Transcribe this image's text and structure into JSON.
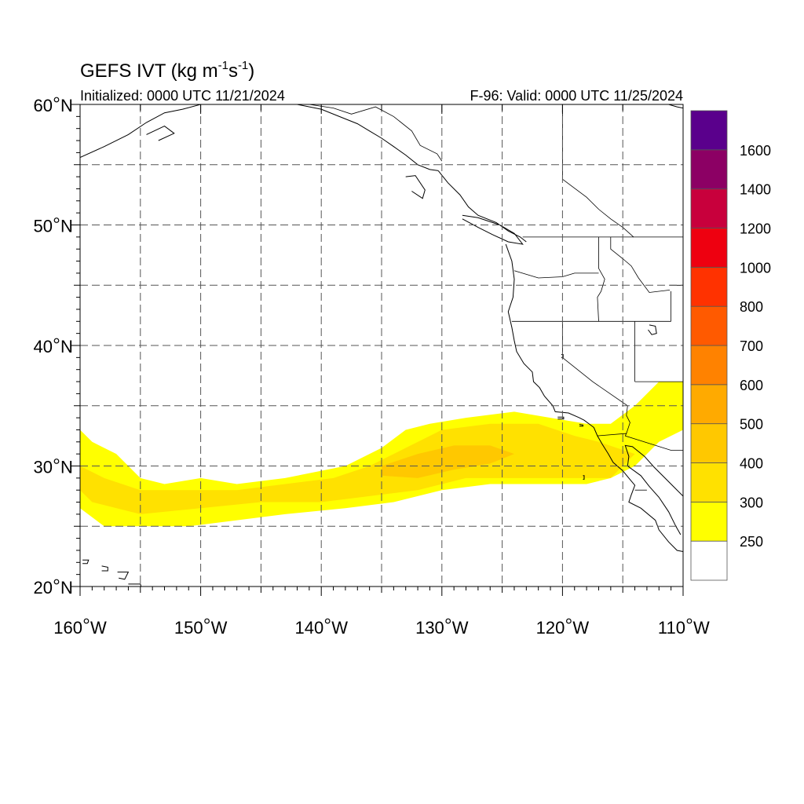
{
  "title": {
    "main": "GEFS IVT (kg m",
    "exp1": "-1",
    "mid": "s",
    "exp2": "-1",
    "close": ")"
  },
  "initialized": "Initialized: 0000 UTC 11/21/2024",
  "valid": "F-96: Valid: 0000 UTC 11/25/2024",
  "y_axis": {
    "labels": [
      {
        "value": 60,
        "num": "60",
        "unit": "N"
      },
      {
        "value": 50,
        "num": "50",
        "unit": "N"
      },
      {
        "value": 40,
        "num": "40",
        "unit": "N"
      },
      {
        "value": 30,
        "num": "30",
        "unit": "N"
      },
      {
        "value": 20,
        "num": "20",
        "unit": "N"
      }
    ]
  },
  "x_axis": {
    "labels": [
      {
        "value": -160,
        "num": "160",
        "unit": "W"
      },
      {
        "value": -150,
        "num": "150",
        "unit": "W"
      },
      {
        "value": -140,
        "num": "140",
        "unit": "W"
      },
      {
        "value": -130,
        "num": "130",
        "unit": "W"
      },
      {
        "value": -120,
        "num": "120",
        "unit": "W"
      },
      {
        "value": -110,
        "num": "110",
        "unit": "W"
      }
    ]
  },
  "map_extent": {
    "lon": [
      -160,
      -110
    ],
    "lat": [
      20,
      60
    ]
  },
  "colorbar": {
    "colors": [
      "#ffffff",
      "#ffff00",
      "#ffe100",
      "#ffc800",
      "#ffaa00",
      "#ff8200",
      "#ff5a00",
      "#ff3200",
      "#ee0010",
      "#c8003c",
      "#8c0064",
      "#5a008c"
    ],
    "labels": [
      "250",
      "300",
      "400",
      "500",
      "600",
      "700",
      "800",
      "1000",
      "1200",
      "1400",
      "1600"
    ]
  },
  "ivt_bands": [
    {
      "level": 250,
      "color": "#ffff00",
      "polygon": [
        [
          -160,
          33
        ],
        [
          -159,
          32
        ],
        [
          -157,
          31
        ],
        [
          -155,
          29
        ],
        [
          -153,
          28.5
        ],
        [
          -150,
          29
        ],
        [
          -147,
          28.5
        ],
        [
          -143,
          29
        ],
        [
          -138,
          30
        ],
        [
          -135,
          31.5
        ],
        [
          -133,
          33
        ],
        [
          -131,
          33.5
        ],
        [
          -128,
          34
        ],
        [
          -124,
          34.5
        ],
        [
          -121,
          34
        ],
        [
          -118,
          33.5
        ],
        [
          -116,
          33.5
        ],
        [
          -114,
          35
        ],
        [
          -112,
          37
        ],
        [
          -110,
          37
        ],
        [
          -110,
          33
        ],
        [
          -112,
          32
        ],
        [
          -114,
          30
        ],
        [
          -116,
          29
        ],
        [
          -118,
          28.5
        ],
        [
          -122,
          28.5
        ],
        [
          -126,
          28.5
        ],
        [
          -130,
          28
        ],
        [
          -134,
          27
        ],
        [
          -138,
          26.5
        ],
        [
          -143,
          26
        ],
        [
          -147,
          25.5
        ],
        [
          -151,
          25
        ],
        [
          -155,
          25
        ],
        [
          -158,
          25
        ],
        [
          -160,
          26.5
        ]
      ]
    },
    {
      "level": 300,
      "color": "#ffe100",
      "polygon": [
        [
          -160,
          30
        ],
        [
          -158,
          29
        ],
        [
          -155,
          28
        ],
        [
          -151,
          28
        ],
        [
          -147,
          28
        ],
        [
          -143,
          28.5
        ],
        [
          -139,
          29
        ],
        [
          -136,
          30
        ],
        [
          -133,
          31.5
        ],
        [
          -130,
          33
        ],
        [
          -126,
          33.5
        ],
        [
          -122,
          33.5
        ],
        [
          -119,
          32.5
        ],
        [
          -117,
          32
        ],
        [
          -114,
          31
        ],
        [
          -116,
          29
        ],
        [
          -119,
          29
        ],
        [
          -124,
          29
        ],
        [
          -128,
          29
        ],
        [
          -132,
          28
        ],
        [
          -136,
          27.5
        ],
        [
          -140,
          27
        ],
        [
          -145,
          27
        ],
        [
          -150,
          26.5
        ],
        [
          -155,
          26
        ],
        [
          -159,
          27
        ],
        [
          -160,
          28
        ]
      ]
    },
    {
      "level": 400,
      "color": "#ffc800",
      "polygon": [
        [
          -135,
          30
        ],
        [
          -132,
          31
        ],
        [
          -129,
          31.7
        ],
        [
          -126,
          31.7
        ],
        [
          -124,
          31
        ],
        [
          -126,
          30.2
        ],
        [
          -129,
          29.7
        ],
        [
          -132,
          29
        ],
        [
          -135,
          29.2
        ]
      ]
    }
  ],
  "coastlines": [
    {
      "name": "alaska",
      "points": [
        [
          -160,
          55.6
        ],
        [
          -158,
          56.5
        ],
        [
          -156,
          57.5
        ],
        [
          -154.5,
          58.5
        ],
        [
          -153,
          59.3
        ],
        [
          -151.5,
          59.6
        ],
        [
          -150,
          60
        ],
        [
          -148,
          60
        ],
        [
          -146,
          60.3
        ],
        [
          -144,
          60
        ],
        [
          -142,
          60
        ],
        [
          -140,
          59.6
        ],
        [
          -138.5,
          59
        ],
        [
          -137,
          58.4
        ],
        [
          -136,
          57.8
        ],
        [
          -135,
          57.2
        ],
        [
          -134,
          56.5
        ],
        [
          -133,
          55.8
        ],
        [
          -132,
          55
        ],
        [
          -131,
          54.6
        ],
        [
          -130.3,
          54.5
        ]
      ]
    },
    {
      "name": "kodiak",
      "points": [
        [
          -154.5,
          57.5
        ],
        [
          -153,
          58.2
        ],
        [
          -152.2,
          57.6
        ],
        [
          -153.5,
          57
        ]
      ]
    },
    {
      "name": "bc-coast",
      "points": [
        [
          -130.3,
          54.5
        ],
        [
          -129.5,
          53.5
        ],
        [
          -128.5,
          52.5
        ],
        [
          -127.8,
          51.5
        ],
        [
          -127,
          50.8
        ],
        [
          -125.5,
          50.2
        ],
        [
          -124.5,
          49.5
        ],
        [
          -123.5,
          49
        ],
        [
          -123,
          48.6
        ]
      ]
    },
    {
      "name": "haida-gwaii",
      "points": [
        [
          -133,
          54
        ],
        [
          -132.2,
          54.1
        ],
        [
          -131.4,
          52.9
        ],
        [
          -131.6,
          52.2
        ],
        [
          -132.5,
          52.8
        ]
      ]
    },
    {
      "name": "vancouver-island",
      "points": [
        [
          -128.3,
          50.8
        ],
        [
          -127,
          50.6
        ],
        [
          -125.2,
          50
        ],
        [
          -124,
          49.3
        ],
        [
          -123.3,
          48.4
        ],
        [
          -124.5,
          48.6
        ],
        [
          -125.8,
          49.2
        ],
        [
          -127,
          49.8
        ],
        [
          -128.3,
          50.5
        ]
      ]
    },
    {
      "name": "us-west-coast",
      "points": [
        [
          -124.7,
          48.4
        ],
        [
          -124.2,
          47
        ],
        [
          -124,
          45.5
        ],
        [
          -124.1,
          44
        ],
        [
          -124.5,
          42.8
        ],
        [
          -124.2,
          41.5
        ],
        [
          -124,
          40.4
        ],
        [
          -123.8,
          39.5
        ],
        [
          -123.2,
          38.5
        ],
        [
          -122.5,
          37.8
        ],
        [
          -122.4,
          37
        ],
        [
          -121.9,
          36.5
        ],
        [
          -121.5,
          35.8
        ],
        [
          -120.8,
          35
        ],
        [
          -120.6,
          34.5
        ],
        [
          -119.5,
          34.4
        ],
        [
          -118.6,
          34
        ],
        [
          -118.2,
          33.8
        ],
        [
          -117.4,
          33.2
        ],
        [
          -117.1,
          32.5
        ],
        [
          -116.7,
          31.8
        ],
        [
          -116.2,
          31
        ],
        [
          -115.8,
          30.3
        ],
        [
          -115,
          29.6
        ],
        [
          -114.5,
          29
        ],
        [
          -114,
          28.4
        ],
        [
          -114.3,
          27.6
        ],
        [
          -114.5,
          27
        ],
        [
          -113.5,
          26.5
        ],
        [
          -112.3,
          25.5
        ],
        [
          -112,
          24.7
        ],
        [
          -111.2,
          23.7
        ],
        [
          -110.5,
          23
        ],
        [
          -110,
          22.9
        ]
      ]
    },
    {
      "name": "gulf-of-california",
      "points": [
        [
          -110,
          27.5
        ],
        [
          -110.7,
          28.2
        ],
        [
          -111.5,
          29
        ],
        [
          -112.4,
          29.9
        ],
        [
          -113.2,
          30.8
        ],
        [
          -114.2,
          31.6
        ],
        [
          -114.8,
          31.7
        ],
        [
          -114.5,
          30.8
        ],
        [
          -114.6,
          30
        ],
        [
          -113.5,
          29.2
        ],
        [
          -112.8,
          28.3
        ],
        [
          -112,
          27.4
        ],
        [
          -111.2,
          26.2
        ],
        [
          -110.6,
          25
        ],
        [
          -110.2,
          24.3
        ]
      ]
    },
    {
      "name": "mexico-mainland",
      "points": [
        [
          -110,
          26.8
        ],
        [
          -109.5,
          26
        ],
        [
          -109,
          25.5
        ]
      ]
    },
    {
      "name": "hawaii-1",
      "points": [
        [
          -159.8,
          22.2
        ],
        [
          -159.3,
          22.2
        ],
        [
          -159.4,
          21.9
        ],
        [
          -159.8,
          21.9
        ]
      ]
    },
    {
      "name": "hawaii-2",
      "points": [
        [
          -158.2,
          21.7
        ],
        [
          -157.7,
          21.6
        ],
        [
          -157.7,
          21.3
        ],
        [
          -158.2,
          21.3
        ]
      ]
    },
    {
      "name": "hawaii-3",
      "points": [
        [
          -156.9,
          21.2
        ],
        [
          -156,
          21.2
        ],
        [
          -156.3,
          20.6
        ],
        [
          -156.8,
          20.7
        ]
      ]
    },
    {
      "name": "hawaii-4",
      "points": [
        [
          -156,
          20.2
        ],
        [
          -155,
          20.2
        ],
        [
          -154.8,
          19.5
        ],
        [
          -155.3,
          19.2
        ],
        [
          -155.9,
          19.7
        ]
      ]
    },
    {
      "name": "channel-islands-1",
      "points": [
        [
          -120.4,
          34.05
        ],
        [
          -119.9,
          34.05
        ],
        [
          -119.9,
          33.9
        ],
        [
          -120.4,
          33.9
        ]
      ]
    },
    {
      "name": "channel-islands-2",
      "points": [
        [
          -118.6,
          33.45
        ],
        [
          -118.3,
          33.4
        ],
        [
          -118.3,
          33.3
        ],
        [
          -118.6,
          33.3
        ]
      ]
    },
    {
      "name": "guadalupe-island",
      "points": [
        [
          -118.3,
          29.2
        ],
        [
          -118.2,
          29.2
        ],
        [
          -118.2,
          28.9
        ],
        [
          -118.3,
          28.9
        ]
      ]
    },
    {
      "name": "great-salt-lake",
      "points": [
        [
          -112.8,
          41.7
        ],
        [
          -112.3,
          41.6
        ],
        [
          -112.2,
          41
        ],
        [
          -112.6,
          40.9
        ],
        [
          -112.9,
          41.3
        ]
      ]
    },
    {
      "name": "lake-tahoe",
      "points": [
        [
          -120.1,
          39.25
        ],
        [
          -119.95,
          39.25
        ],
        [
          -119.95,
          39
        ],
        [
          -120.1,
          39
        ]
      ]
    },
    {
      "name": "hudson-bay-edge",
      "points": [
        [
          -111.2,
          60
        ],
        [
          -110.5,
          59.8
        ],
        [
          -110,
          59.7
        ]
      ]
    }
  ],
  "borders": [
    {
      "name": "us-canada-49",
      "points": [
        [
          -123.3,
          49
        ],
        [
          -110,
          49
        ]
      ]
    },
    {
      "name": "alaska-bc",
      "points": [
        [
          -141,
          60
        ],
        [
          -139,
          59.7
        ],
        [
          -137.5,
          59.2
        ],
        [
          -135.5,
          59.8
        ],
        [
          -134,
          59
        ],
        [
          -132.5,
          57.8
        ],
        [
          -131.8,
          56.6
        ],
        [
          -130.4,
          55.9
        ],
        [
          -130,
          55.3
        ]
      ]
    },
    {
      "name": "bc-alberta",
      "points": [
        [
          -120,
          60
        ],
        [
          -120,
          53.8
        ],
        [
          -119.2,
          53.2
        ],
        [
          -118,
          52.3
        ],
        [
          -117,
          51.3
        ],
        [
          -116,
          50.5
        ],
        [
          -115,
          49.8
        ],
        [
          -114.1,
          49
        ]
      ]
    },
    {
      "name": "wa-or",
      "points": [
        [
          -124,
          46.2
        ],
        [
          -122,
          45.6
        ],
        [
          -120,
          45.7
        ],
        [
          -119,
          46
        ],
        [
          -117,
          46
        ]
      ]
    },
    {
      "name": "wa-id",
      "points": [
        [
          -117,
          49
        ],
        [
          -117,
          46.4
        ],
        [
          -116.5,
          45.5
        ],
        [
          -116.8,
          44.5
        ],
        [
          -117.1,
          44
        ],
        [
          -117,
          42
        ]
      ]
    },
    {
      "name": "or-ca-nv-42",
      "points": [
        [
          -124.2,
          42
        ],
        [
          -111,
          42
        ]
      ]
    },
    {
      "name": "ca-nv",
      "points": [
        [
          -120,
          42
        ],
        [
          -120,
          39
        ],
        [
          -117.5,
          37
        ],
        [
          -114.6,
          35
        ]
      ]
    },
    {
      "name": "nv-ut",
      "points": [
        [
          -114,
          42
        ],
        [
          -114,
          37
        ]
      ]
    },
    {
      "name": "ut-az-37",
      "points": [
        [
          -114,
          37
        ],
        [
          -110,
          37
        ]
      ]
    },
    {
      "name": "az-ca",
      "points": [
        [
          -114.6,
          35
        ],
        [
          -114.7,
          34.2
        ],
        [
          -114.4,
          33.6
        ],
        [
          -114.7,
          32.7
        ]
      ]
    },
    {
      "name": "us-mexico",
      "points": [
        [
          -117.1,
          32.5
        ],
        [
          -114.7,
          32.7
        ],
        [
          -114.8,
          32.5
        ],
        [
          -111,
          31.3
        ],
        [
          -110,
          31.3
        ]
      ]
    },
    {
      "name": "mt-id",
      "points": [
        [
          -116,
          49
        ],
        [
          -116,
          48
        ],
        [
          -115,
          47.2
        ],
        [
          -114.3,
          46.6
        ],
        [
          -113.7,
          45.6
        ],
        [
          -112.8,
          44.4
        ],
        [
          -111.1,
          44.6
        ]
      ]
    },
    {
      "name": "id-wy",
      "points": [
        [
          -111,
          44.5
        ],
        [
          -111,
          42
        ]
      ]
    },
    {
      "name": "mt-wy",
      "points": [
        [
          -111.1,
          45
        ],
        [
          -110,
          45
        ]
      ]
    },
    {
      "name": "baja-states",
      "points": [
        [
          -114,
          28
        ],
        [
          -113,
          28
        ]
      ]
    },
    {
      "name": "sonora-sinaloa",
      "points": [
        [
          -110,
          27.2
        ],
        [
          -109,
          26.5
        ]
      ]
    }
  ]
}
